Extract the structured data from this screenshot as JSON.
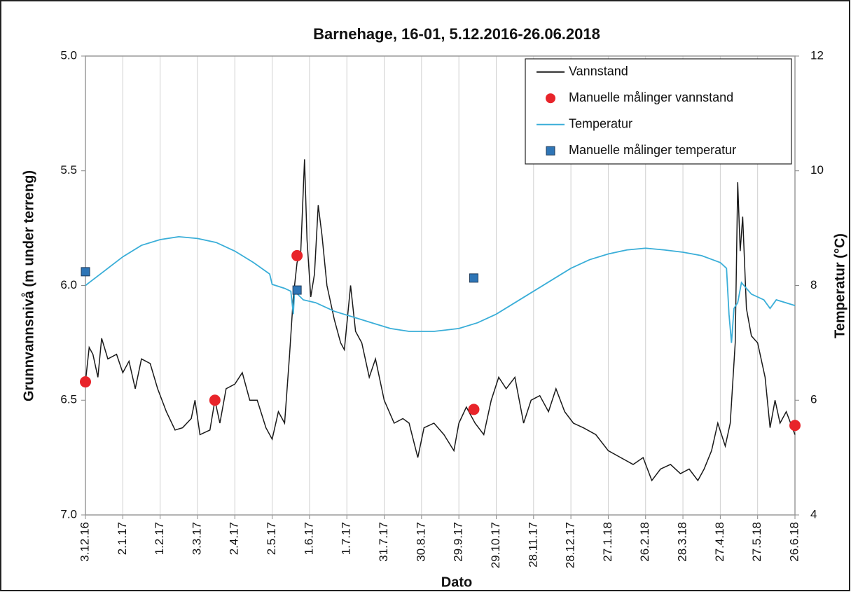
{
  "chart_data": {
    "type": "line",
    "title": "Barnehage, 16-01, 5.12.2016-26.06.2018",
    "xlabel": "Dato",
    "ylabel": "Grunnvannsnivå (m under terreng)",
    "y2label": "Temperatur (°C)",
    "xlim": [
      "3.12.16",
      "26.6.18"
    ],
    "xticks": [
      "3.12.16",
      "2.1.17",
      "1.2.17",
      "3.3.17",
      "2.4.17",
      "2.5.17",
      "1.6.17",
      "1.7.17",
      "31.7.17",
      "30.8.17",
      "29.9.17",
      "29.10.17",
      "28.11.17",
      "28.12.17",
      "27.1.18",
      "26.2.18",
      "28.3.18",
      "27.4.18",
      "27.5.18",
      "26.6.18"
    ],
    "ylim": [
      7,
      5
    ],
    "yticks": [
      {
        "value": 5,
        "label": "5.0"
      },
      {
        "value": 5.5,
        "label": "5.5"
      },
      {
        "value": 6,
        "label": "6.0"
      },
      {
        "value": 6.5,
        "label": "6.5"
      },
      {
        "value": 7,
        "label": "7.0"
      }
    ],
    "y2lim": [
      4,
      12
    ],
    "y2ticks": [
      4,
      6,
      8,
      10,
      12
    ],
    "grid": "x",
    "legend": "upper right",
    "series": [
      {
        "name": "Vannstand",
        "color": "#1a1a1a",
        "kind": "line",
        "x": [
          "3.12.16",
          "6.12.16",
          "9.12.16",
          "13.12.16",
          "16.12.16",
          "21.12.16",
          "28.12.16",
          "2.1.17",
          "7.1.17",
          "12.1.17",
          "17.1.17",
          "24.1.17",
          "30.1.17",
          "6.2.17",
          "13.2.17",
          "19.2.17",
          "26.2.17",
          "1.3.17",
          "5.3.17",
          "13.3.17",
          "17.3.17",
          "21.3.17",
          "26.3.17",
          "2.4.17",
          "8.4.17",
          "14.4.17",
          "20.4.17",
          "27.4.17",
          "2.5.17",
          "7.5.17",
          "12.5.17",
          "16.5.17",
          "19.5.17",
          "22.5.17",
          "25.5.17",
          "28.5.17",
          "30.5.17",
          "2.6.17",
          "5.6.17",
          "8.6.17",
          "11.6.17",
          "15.6.17",
          "21.6.17",
          "26.6.17",
          "29.6.17",
          "4.7.17",
          "8.7.17",
          "13.7.17",
          "19.7.17",
          "24.7.17",
          "31.7.17",
          "8.8.17",
          "15.8.17",
          "20.8.17",
          "27.8.17",
          "1.9.17",
          "9.9.17",
          "17.9.17",
          "25.9.17",
          "29.9.17",
          "5.10.17",
          "12.10.17",
          "19.10.17",
          "25.10.17",
          "31.10.17",
          "6.11.17",
          "13.11.17",
          "20.11.17",
          "26.11.17",
          "3.12.17",
          "10.12.17",
          "16.12.17",
          "23.12.17",
          "30.12.17",
          "7.1.18",
          "17.1.18",
          "27.1.18",
          "6.2.18",
          "16.2.18",
          "24.2.18",
          "3.3.18",
          "10.3.18",
          "18.3.18",
          "26.3.18",
          "2.4.18",
          "9.4.18",
          "14.4.18",
          "20.4.18",
          "25.4.18",
          "1.5.18",
          "5.5.18",
          "9.5.18",
          "11.5.18",
          "13.5.18",
          "15.5.18",
          "18.5.18",
          "22.5.18",
          "27.5.18",
          "2.6.18",
          "6.6.18",
          "10.6.18",
          "14.6.18",
          "19.6.18",
          "26.6.18"
        ],
        "values": [
          6.42,
          6.27,
          6.3,
          6.4,
          6.23,
          6.32,
          6.3,
          6.38,
          6.33,
          6.45,
          6.32,
          6.34,
          6.45,
          6.55,
          6.63,
          6.62,
          6.58,
          6.5,
          6.65,
          6.63,
          6.5,
          6.6,
          6.45,
          6.43,
          6.38,
          6.5,
          6.5,
          6.62,
          6.67,
          6.55,
          6.6,
          6.3,
          6.05,
          5.9,
          5.85,
          5.45,
          5.8,
          6.05,
          5.95,
          5.65,
          5.78,
          6.0,
          6.15,
          6.25,
          6.28,
          6.0,
          6.2,
          6.25,
          6.4,
          6.32,
          6.5,
          6.6,
          6.58,
          6.6,
          6.75,
          6.62,
          6.6,
          6.65,
          6.72,
          6.6,
          6.53,
          6.6,
          6.65,
          6.5,
          6.4,
          6.45,
          6.4,
          6.6,
          6.5,
          6.48,
          6.55,
          6.45,
          6.55,
          6.6,
          6.62,
          6.65,
          6.72,
          6.75,
          6.78,
          6.75,
          6.85,
          6.8,
          6.78,
          6.82,
          6.8,
          6.85,
          6.8,
          6.72,
          6.6,
          6.7,
          6.6,
          6.25,
          5.55,
          5.85,
          5.7,
          6.1,
          6.22,
          6.25,
          6.4,
          6.62,
          6.5,
          6.6,
          6.55,
          6.65
        ]
      },
      {
        "name": "Manuelle målinger vannstand",
        "color": "#e8242a",
        "kind": "marker",
        "marker": "circle",
        "x": [
          "3.12.16",
          "17.3.17",
          "22.5.17",
          "11.10.17",
          "26.6.18"
        ],
        "values": [
          6.42,
          6.5,
          5.87,
          6.54,
          6.61
        ]
      },
      {
        "name": "Temperatur",
        "color": "#3aaed8",
        "kind": "line",
        "axis": "y2",
        "x": [
          "3.12.16",
          "18.12.16",
          "2.1.17",
          "17.1.17",
          "1.2.17",
          "16.2.17",
          "3.3.17",
          "18.3.17",
          "2.4.17",
          "17.4.17",
          "30.4.17",
          "2.5.17",
          "12.5.17",
          "17.5.17",
          "19.5.17",
          "20.5.17",
          "27.5.17",
          "6.6.17",
          "21.6.17",
          "6.7.17",
          "21.7.17",
          "5.8.17",
          "20.8.17",
          "9.9.17",
          "29.9.17",
          "14.10.17",
          "29.10.17",
          "13.11.17",
          "28.11.17",
          "13.12.17",
          "28.12.17",
          "12.1.18",
          "27.1.18",
          "11.2.18",
          "26.2.18",
          "13.3.18",
          "28.3.18",
          "12.4.18",
          "27.4.18",
          "2.5.18",
          "4.5.18",
          "6.5.18",
          "8.5.18",
          "11.5.18",
          "14.5.18",
          "22.5.18",
          "1.6.18",
          "6.6.18",
          "11.6.18",
          "26.6.18"
        ],
        "values": [
          8.0,
          8.25,
          8.5,
          8.7,
          8.8,
          8.85,
          8.82,
          8.75,
          8.6,
          8.4,
          8.2,
          8.02,
          7.95,
          7.9,
          7.5,
          7.9,
          7.75,
          7.7,
          7.55,
          7.45,
          7.35,
          7.25,
          7.2,
          7.2,
          7.25,
          7.35,
          7.5,
          7.7,
          7.9,
          8.1,
          8.3,
          8.45,
          8.55,
          8.62,
          8.65,
          8.62,
          8.58,
          8.52,
          8.4,
          8.3,
          7.5,
          7.0,
          7.6,
          7.7,
          8.05,
          7.85,
          7.75,
          7.6,
          7.75,
          7.65
        ]
      },
      {
        "name": "Manuelle målinger temperatur",
        "color": "#2e75b6",
        "kind": "marker",
        "marker": "square",
        "axis": "y2",
        "x": [
          "3.12.16",
          "22.5.17",
          "11.10.17"
        ],
        "values": [
          8.24,
          7.92,
          8.13
        ]
      }
    ]
  }
}
